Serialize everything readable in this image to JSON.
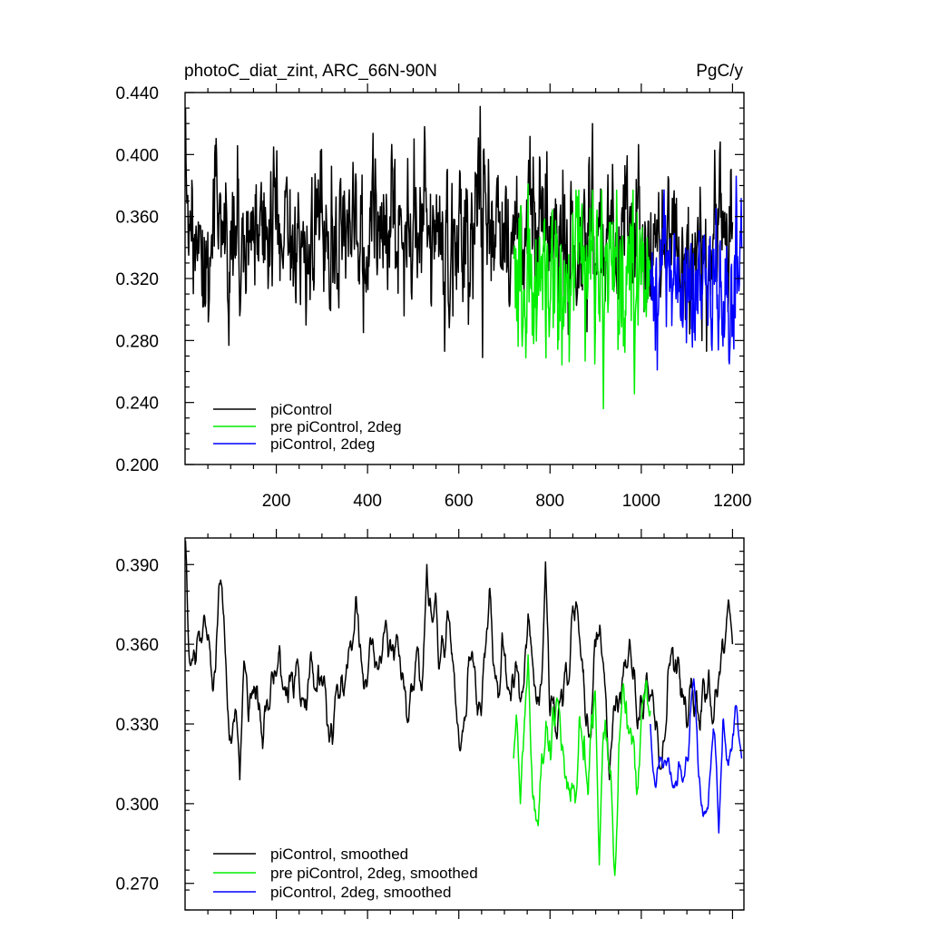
{
  "chart_data": [
    {
      "type": "line",
      "title": "photoC_diat_zint, ARC_66N-90N",
      "units": "PgC/y",
      "xlabel": "",
      "ylabel": "",
      "xlim": [
        0,
        1225
      ],
      "ylim": [
        0.2,
        0.44
      ],
      "x_ticks": [
        200,
        400,
        600,
        800,
        1000,
        1200
      ],
      "x_tick_labels": [
        "200",
        "400",
        "600",
        "800",
        "1000",
        "1200"
      ],
      "y_ticks": [
        0.2,
        0.24,
        0.28,
        0.32,
        0.36,
        0.4,
        0.44
      ],
      "y_tick_labels": [
        "0.200",
        "0.240",
        "0.280",
        "0.320",
        "0.360",
        "0.400",
        "0.440"
      ],
      "legend_position": "bottom-left",
      "series": [
        {
          "name": "piControl",
          "color": "#000000",
          "x_start": 1,
          "x_end": 1200,
          "summary": {
            "mean": 0.347,
            "std": 0.024,
            "min": 0.269,
            "max": 0.431
          },
          "key_points": [
            [
              1,
              0.43
            ],
            [
              3,
              0.38
            ],
            [
              120,
              0.296
            ],
            [
              265,
              0.29
            ],
            [
              525,
              0.418
            ],
            [
              647,
              0.431
            ],
            [
              652,
              0.269
            ]
          ]
        },
        {
          "name": "pre piControl, 2deg",
          "color": "#00ee00",
          "x_start": 720,
          "x_end": 1020,
          "summary": {
            "mean": 0.322,
            "std": 0.026,
            "min": 0.236,
            "max": 0.381
          },
          "key_points": [
            [
              752,
              0.381
            ],
            [
              917,
              0.236
            ]
          ]
        },
        {
          "name": "piControl, 2deg",
          "color": "#0000ff",
          "x_start": 1020,
          "x_end": 1220,
          "summary": {
            "mean": 0.317,
            "std": 0.022,
            "min": 0.261,
            "max": 0.386
          },
          "key_points": [
            [
              1035,
              0.261
            ],
            [
              1208,
              0.386
            ]
          ]
        }
      ]
    },
    {
      "type": "line",
      "title": "",
      "xlabel": "",
      "ylabel": "",
      "xlim": [
        0,
        1225
      ],
      "ylim": [
        0.26,
        0.4
      ],
      "x_ticks": [
        200,
        400,
        600,
        800,
        1000,
        1200
      ],
      "x_tick_labels": [],
      "y_ticks": [
        0.27,
        0.3,
        0.33,
        0.36,
        0.39
      ],
      "y_tick_labels": [
        "0.270",
        "0.300",
        "0.330",
        "0.360",
        "0.390"
      ],
      "legend_position": "bottom-left",
      "series": [
        {
          "name": "piControl, smoothed",
          "color": "#000000",
          "x_start": 1,
          "x_end": 1200,
          "summary": {
            "mean": 0.348,
            "std": 0.013,
            "min": 0.309,
            "max": 0.399
          },
          "key_points": [
            [
              1,
              0.399
            ],
            [
              12,
              0.352
            ],
            [
              120,
              0.309
            ],
            [
              530,
              0.39
            ],
            [
              790,
              0.391
            ],
            [
              930,
              0.309
            ],
            [
              1200,
              0.36
            ]
          ]
        },
        {
          "name": "pre piControl, 2deg, smoothed",
          "color": "#00ee00",
          "x_start": 720,
          "x_end": 1020,
          "summary": {
            "mean": 0.322,
            "std": 0.014,
            "min": 0.273,
            "max": 0.356
          },
          "key_points": [
            [
              720,
              0.317
            ],
            [
              735,
              0.3
            ],
            [
              752,
              0.356
            ],
            [
              908,
              0.277
            ],
            [
              942,
              0.273
            ],
            [
              1020,
              0.335
            ]
          ]
        },
        {
          "name": "piControl, 2deg, smoothed",
          "color": "#0000ff",
          "x_start": 1020,
          "x_end": 1220,
          "summary": {
            "mean": 0.317,
            "std": 0.011,
            "min": 0.289,
            "max": 0.347
          },
          "key_points": [
            [
              1020,
              0.33
            ],
            [
              1115,
              0.347
            ],
            [
              1170,
              0.289
            ],
            [
              1220,
              0.317
            ]
          ]
        }
      ]
    }
  ]
}
